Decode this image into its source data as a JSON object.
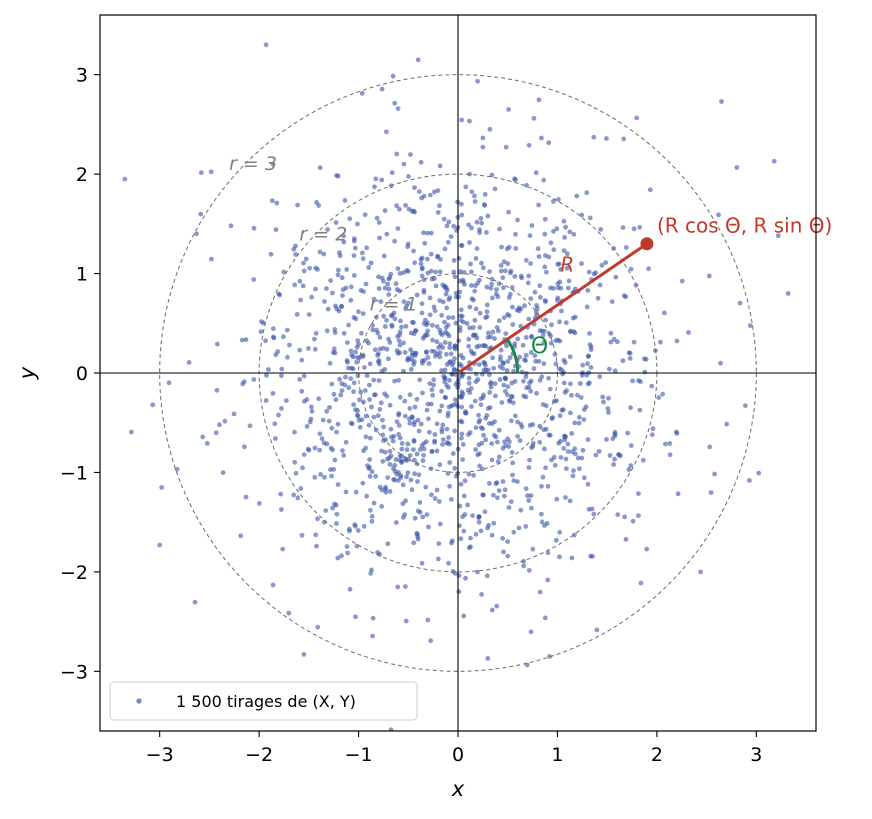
{
  "chart_data": {
    "type": "scatter",
    "xlabel": "x",
    "ylabel": "y",
    "xlim": [
      -3.6,
      3.6
    ],
    "ylim": [
      -3.6,
      3.6
    ],
    "xticks": [
      -3,
      -2,
      -1,
      0,
      1,
      2,
      3
    ],
    "yticks": [
      -3,
      -2,
      -1,
      0,
      1,
      2,
      3
    ],
    "xtick_labels": [
      "−3",
      "−2",
      "−1",
      "0",
      "1",
      "2",
      "3"
    ],
    "ytick_labels": [
      "−3",
      "−2",
      "−1",
      "0",
      "1",
      "2",
      "3"
    ],
    "grid": false,
    "series": [
      {
        "name": "1 500 tirages de (X, Y)",
        "n_points": 1500,
        "distribution": "standard bivariate normal",
        "color": "#3a55a8",
        "sample_points": [
          [
            -3.35,
            1.95
          ],
          [
            -1.93,
            3.3
          ],
          [
            -0.4,
            3.15
          ],
          [
            2.65,
            2.73
          ],
          [
            3.18,
            2.13
          ],
          [
            3.32,
            0.8
          ],
          [
            2.93,
            -1.08
          ],
          [
            -3.07,
            -0.32
          ],
          [
            -2.98,
            -1.15
          ],
          [
            -3.0,
            -1.73
          ],
          [
            -1.55,
            -2.83
          ],
          [
            0.3,
            -2.87
          ],
          [
            0.92,
            -2.85
          ],
          [
            2.44,
            -2.0
          ],
          [
            -2.63,
            1.4
          ]
        ]
      }
    ],
    "reference_circles": [
      {
        "r": 1,
        "label": "r = 1"
      },
      {
        "r": 2,
        "label": "r = 2"
      },
      {
        "r": 3,
        "label": "r = 3"
      }
    ],
    "highlight_point": {
      "x": 1.9,
      "y": 1.3,
      "label": "(R cos Θ,  R sin Θ)",
      "radius_label": "R",
      "angle_label": "Θ",
      "color": "#c0392b",
      "angle_color": "#1e8449"
    },
    "legend": {
      "position": "lower-left",
      "entries": [
        "1 500 tirages de (X, Y)"
      ]
    }
  }
}
